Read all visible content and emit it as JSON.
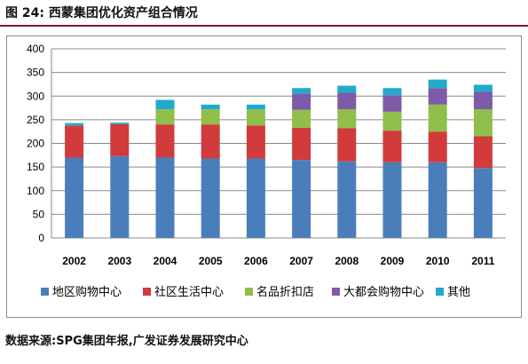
{
  "figure": {
    "title": "图 24:  西蒙集团优化资产组合情况",
    "source": "数据来源:SPG集团年报,广发证券发展研究中心"
  },
  "chart_data": {
    "type": "bar",
    "stacked": true,
    "categories": [
      "2002",
      "2003",
      "2004",
      "2005",
      "2006",
      "2007",
      "2008",
      "2009",
      "2010",
      "2011"
    ],
    "ylim": [
      0,
      400
    ],
    "yticks": [
      0,
      50,
      100,
      150,
      200,
      250,
      300,
      350,
      400
    ],
    "grid": true,
    "legend_position": "bottom",
    "series": [
      {
        "name": "地区购物中心",
        "color": "#4a7ebb",
        "values": [
          170,
          173,
          170,
          168,
          168,
          165,
          162,
          160,
          160,
          148
        ]
      },
      {
        "name": "社区生活中心",
        "color": "#d13b3b",
        "values": [
          68,
          68,
          70,
          72,
          70,
          68,
          70,
          67,
          65,
          67
        ]
      },
      {
        "name": "名品折扣店",
        "color": "#8fbf4a",
        "values": [
          0,
          0,
          32,
          32,
          34,
          38,
          40,
          40,
          57,
          57
        ]
      },
      {
        "name": "大都会购物中心",
        "color": "#7e5ba6",
        "values": [
          0,
          0,
          0,
          0,
          0,
          34,
          35,
          35,
          35,
          37
        ]
      },
      {
        "name": "其他",
        "color": "#22aacc",
        "values": [
          5,
          3,
          20,
          10,
          10,
          12,
          15,
          15,
          18,
          15
        ]
      }
    ]
  }
}
